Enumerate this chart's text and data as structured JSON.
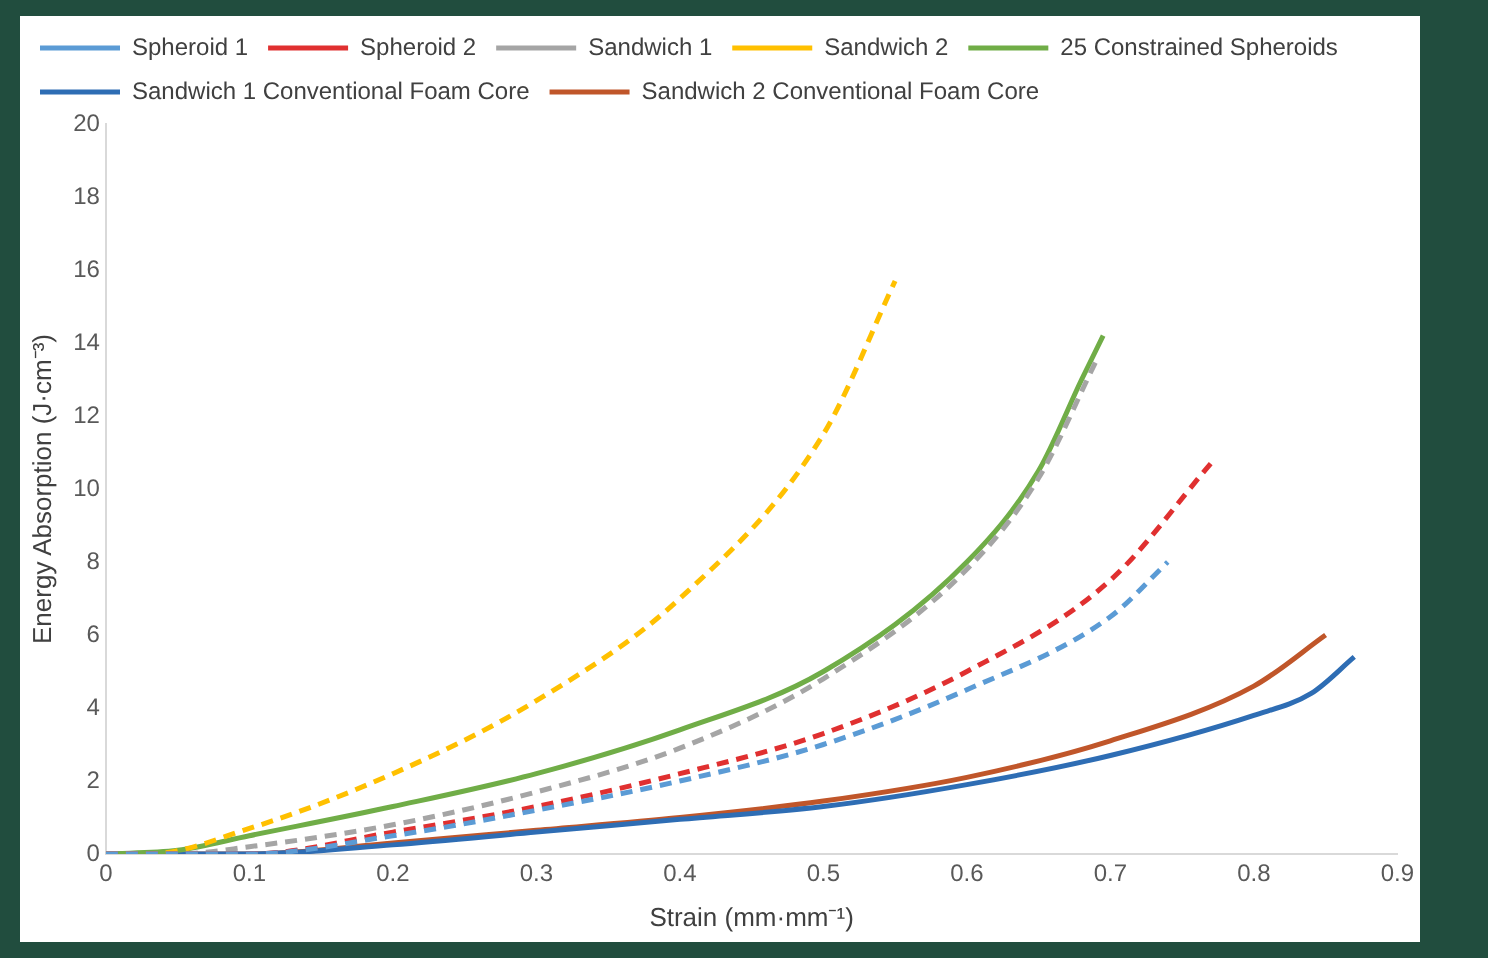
{
  "chart_data": {
    "type": "line",
    "xlabel": "Strain (mm·mm⁻¹)",
    "ylabel": "Energy Absorption (J·cm⁻³)",
    "xlim": [
      0,
      0.9
    ],
    "xticks": [
      0,
      0.1,
      0.2,
      0.3,
      0.4,
      0.5,
      0.6,
      0.7,
      0.8,
      0.9
    ],
    "ylim": [
      0,
      20
    ],
    "yticks": [
      0,
      2,
      4,
      6,
      8,
      10,
      12,
      14,
      16,
      18,
      20
    ],
    "grid": false,
    "legend": "top",
    "marker": "none",
    "series": [
      {
        "name": "Spheroid 1",
        "color": "#5b9bd5",
        "line_style": "dashed",
        "x": [
          0,
          0.1,
          0.2,
          0.3,
          0.4,
          0.5,
          0.6,
          0.7,
          0.74
        ],
        "values": [
          0,
          0,
          0.5,
          1.2,
          2.0,
          3.0,
          4.5,
          6.5,
          8.0
        ]
      },
      {
        "name": "Spheroid 2",
        "color": "#e03030",
        "line_style": "dashed",
        "x": [
          0,
          0.1,
          0.2,
          0.3,
          0.4,
          0.5,
          0.6,
          0.7,
          0.77
        ],
        "values": [
          0,
          0,
          0.6,
          1.3,
          2.2,
          3.3,
          5.0,
          7.5,
          10.7
        ]
      },
      {
        "name": "Sandwich 1",
        "color": "#a5a5a5",
        "line_style": "dashed",
        "x": [
          0,
          0.05,
          0.1,
          0.2,
          0.3,
          0.4,
          0.5,
          0.6,
          0.65,
          0.69
        ],
        "values": [
          0,
          0,
          0.2,
          0.8,
          1.7,
          2.9,
          4.8,
          7.8,
          10.3,
          13.5
        ]
      },
      {
        "name": "Sandwich 2",
        "color": "#ffc000",
        "line_style": "dashed",
        "x": [
          0,
          0.03,
          0.1,
          0.2,
          0.3,
          0.4,
          0.5,
          0.55
        ],
        "values": [
          0,
          0,
          0.7,
          2.2,
          4.2,
          7.0,
          11.5,
          15.7
        ]
      },
      {
        "name": "25 Constrained Spheroids",
        "color": "#70ad47",
        "line_style": "solid",
        "x": [
          0,
          0.05,
          0.1,
          0.2,
          0.3,
          0.4,
          0.5,
          0.6,
          0.65,
          0.68,
          0.695
        ],
        "values": [
          0,
          0.1,
          0.5,
          1.3,
          2.2,
          3.4,
          5.0,
          8.0,
          10.5,
          13.0,
          14.2
        ]
      },
      {
        "name": "Sandwich 1 Conventional Foam Core",
        "color": "#2e6db4",
        "line_style": "solid",
        "x": [
          0,
          0.1,
          0.2,
          0.3,
          0.4,
          0.5,
          0.6,
          0.7,
          0.8,
          0.84,
          0.87
        ],
        "values": [
          0,
          0,
          0.25,
          0.6,
          0.95,
          1.3,
          1.9,
          2.7,
          3.8,
          4.4,
          5.4
        ]
      },
      {
        "name": "Sandwich 2 Conventional Foam Core",
        "color": "#c0562a",
        "line_style": "solid",
        "x": [
          0,
          0.1,
          0.2,
          0.3,
          0.4,
          0.5,
          0.6,
          0.7,
          0.8,
          0.85
        ],
        "values": [
          0,
          0,
          0.3,
          0.65,
          1.0,
          1.45,
          2.1,
          3.1,
          4.6,
          6.0
        ]
      }
    ]
  }
}
